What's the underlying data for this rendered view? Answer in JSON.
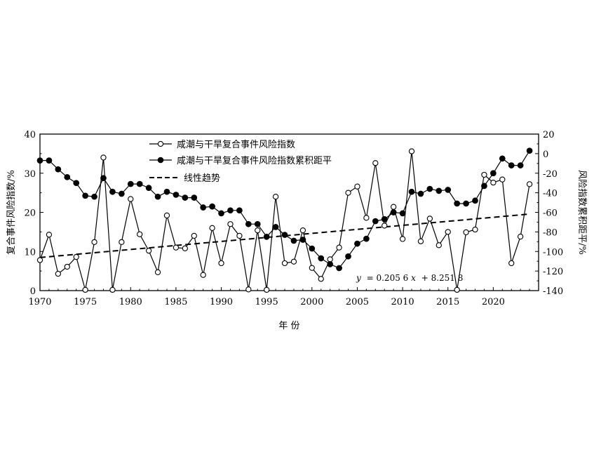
{
  "chart_data": {
    "type": "line",
    "x_label": "年 份",
    "y_label_left": "复合事件风险指数/%",
    "y_label_right": "风险指数累积距平/%",
    "x_range": [
      1970,
      2025
    ],
    "x_ticks": [
      1970,
      1975,
      1980,
      1985,
      1990,
      1995,
      2000,
      2005,
      2010,
      2015,
      2020
    ],
    "y_left_range": [
      0,
      40
    ],
    "y_left_ticks": [
      0,
      10,
      20,
      30,
      40
    ],
    "y_right_range": [
      -140,
      20
    ],
    "y_right_ticks": [
      -140,
      -120,
      -100,
      -80,
      -60,
      -40,
      -20,
      0,
      20
    ],
    "grid": false,
    "legend_position": "top-center",
    "legend": {
      "index": "咸潮与干旱复合事件风险指数",
      "cumulative": "咸潮与干旱复合事件风险指数累积距平",
      "trend": "线性趋势"
    },
    "equation": {
      "y": "y",
      "equals": "= 0.205 6",
      "x": "x",
      "rest": "+ 8.251 8"
    },
    "trend": {
      "slope": 0.2056,
      "intercept": 8.2518,
      "axis": "left",
      "x_start": 1970,
      "x_end": 2024
    },
    "series": [
      {
        "key": "index",
        "axis": "left",
        "marker": "open-circle",
        "x": [
          1970,
          1971,
          1972,
          1973,
          1974,
          1975,
          1976,
          1977,
          1978,
          1979,
          1980,
          1981,
          1982,
          1983,
          1984,
          1985,
          1986,
          1987,
          1988,
          1989,
          1990,
          1991,
          1992,
          1993,
          1994,
          1995,
          1996,
          1997,
          1998,
          1999,
          2000,
          2001,
          2002,
          2003,
          2004,
          2005,
          2006,
          2007,
          2008,
          2009,
          2010,
          2011,
          2012,
          2013,
          2014,
          2015,
          2016,
          2017,
          2018,
          2019,
          2020,
          2021,
          2022,
          2023,
          2024
        ],
        "values": [
          7.8,
          14.3,
          4.3,
          6.1,
          8.6,
          0.2,
          12.4,
          34.0,
          0.2,
          12.4,
          23.4,
          14.4,
          10.2,
          4.7,
          19.2,
          11.0,
          10.8,
          14.0,
          4.0,
          16.0,
          7.0,
          17.0,
          14.0,
          0.3,
          15.4,
          0.2,
          24.0,
          7.0,
          7.4,
          15.4,
          5.8,
          3.0,
          8.0,
          11.0,
          25.0,
          26.6,
          18.6,
          32.6,
          16.6,
          21.4,
          13.2,
          35.6,
          12.6,
          18.4,
          11.6,
          15.0,
          0.2,
          14.9,
          15.6,
          29.6,
          27.6,
          28.4,
          7.0,
          13.8,
          27.2
        ]
      },
      {
        "key": "cumulative",
        "axis": "right",
        "marker": "filled-circle",
        "x": [
          1970,
          1971,
          1972,
          1973,
          1974,
          1975,
          1976,
          1977,
          1978,
          1979,
          1980,
          1981,
          1982,
          1983,
          1984,
          1985,
          1986,
          1987,
          1988,
          1989,
          1990,
          1991,
          1992,
          1993,
          1994,
          1995,
          1996,
          1997,
          1998,
          1999,
          2000,
          2001,
          2002,
          2003,
          2004,
          2005,
          2006,
          2007,
          2008,
          2009,
          2010,
          2011,
          2012,
          2013,
          2014,
          2015,
          2016,
          2017,
          2018,
          2019,
          2020,
          2021,
          2022,
          2023,
          2024
        ],
        "values": [
          -7,
          -7,
          -16,
          -24,
          -30,
          -43,
          -44,
          -25,
          -39,
          -41,
          -31,
          -31,
          -35,
          -44,
          -39,
          -42,
          -45,
          -45,
          -55,
          -54,
          -61,
          -58,
          -58,
          -72,
          -72,
          -85,
          -75,
          -83,
          -89,
          -88,
          -97,
          -107,
          -113,
          -117,
          -105,
          -92,
          -87,
          -69,
          -67,
          -60,
          -61,
          -39,
          -41,
          -36,
          -38,
          -37,
          -51,
          -51,
          -48,
          -33,
          -20,
          -5,
          -12,
          -12,
          3
        ]
      }
    ]
  }
}
